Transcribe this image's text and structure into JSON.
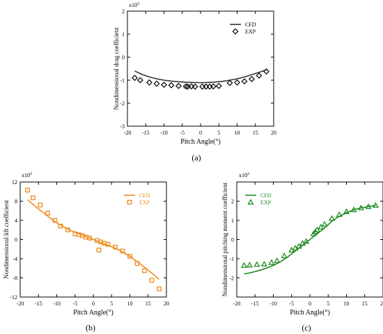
{
  "chart_data": [
    {
      "type": "line",
      "panel_label": "(a)",
      "xlabel": "Pitch Angle(°)",
      "ylabel": "Nondimensional drag  coefficient",
      "y_multiplier": "x10",
      "y_multiplier_exp": "-3",
      "xlim": [
        -20,
        20
      ],
      "ylim": [
        -3,
        2
      ],
      "xticks": [
        -20,
        -15,
        -10,
        -5,
        0,
        5,
        10,
        15,
        20
      ],
      "yticks": [
        -3,
        -2,
        -1,
        0,
        1,
        2
      ],
      "legend_position": "top-right",
      "series": [
        {
          "name": "CFD",
          "kind": "line",
          "color": "#333333",
          "x": [
            -18,
            -16,
            -14,
            -12,
            -10,
            -8,
            -6,
            -4,
            -2,
            0,
            2,
            4,
            6,
            8,
            10,
            12,
            14,
            16,
            18
          ],
          "y": [
            -0.6,
            -0.75,
            -0.86,
            -0.94,
            -1.0,
            -1.04,
            -1.07,
            -1.09,
            -1.1,
            -1.11,
            -1.1,
            -1.08,
            -1.05,
            -1.0,
            -0.94,
            -0.86,
            -0.76,
            -0.66,
            -0.55
          ]
        },
        {
          "name": "EXP",
          "kind": "diamond",
          "color": "#111111",
          "x": [
            -18,
            -16.5,
            -14,
            -12,
            -10,
            -8,
            -6,
            -4,
            -3.5,
            -2.5,
            -1.5,
            0.5,
            1.5,
            2.5,
            3.5,
            5,
            8,
            10,
            12,
            14,
            16,
            18
          ],
          "y": [
            -0.9,
            -1.0,
            -1.1,
            -1.15,
            -1.2,
            -1.22,
            -1.25,
            -1.27,
            -1.28,
            -1.27,
            -1.28,
            -1.28,
            -1.28,
            -1.28,
            -1.27,
            -1.25,
            -1.12,
            -1.1,
            -1.05,
            -0.95,
            -0.8,
            -0.62
          ]
        }
      ]
    },
    {
      "type": "line",
      "panel_label": "(b)",
      "xlabel": "Pitch Angle(°)",
      "ylabel": "Nondimensional lift  coefficient",
      "y_multiplier": "x10",
      "y_multiplier_exp": "-3",
      "xlim": [
        -20,
        20
      ],
      "ylim": [
        -12,
        12
      ],
      "xticks": [
        -20,
        -15,
        -10,
        -5,
        0,
        5,
        10,
        15,
        20
      ],
      "yticks": [
        -12,
        -8,
        -4,
        0,
        4,
        8,
        12
      ],
      "legend_position": "top-right",
      "series": [
        {
          "name": "CFD",
          "kind": "line",
          "color": "#ee8a1c",
          "x": [
            -18,
            -16,
            -14,
            -12,
            -10,
            -8,
            -6,
            -4,
            -2,
            0,
            2,
            4,
            6,
            8,
            10,
            12,
            14,
            16,
            18
          ],
          "y": [
            8.3,
            7.0,
            5.8,
            4.6,
            3.5,
            2.6,
            1.8,
            1.2,
            0.6,
            0.0,
            -0.6,
            -1.2,
            -1.8,
            -2.6,
            -3.5,
            -4.6,
            -5.8,
            -7.0,
            -8.3
          ]
        },
        {
          "name": "EXP",
          "kind": "square",
          "color": "#ee8a1c",
          "x": [
            -18,
            -16.5,
            -14.5,
            -12.5,
            -10.5,
            -9,
            -7,
            -5,
            -4,
            -3,
            -2,
            -1,
            1,
            1.5,
            2,
            3,
            4,
            6,
            8,
            10,
            12,
            14,
            16,
            18
          ],
          "y": [
            10.3,
            8.7,
            7.2,
            5.5,
            4.0,
            2.8,
            2.0,
            1.2,
            1.0,
            0.8,
            0.5,
            0.3,
            -0.2,
            -2.2,
            -0.5,
            -0.8,
            -1.0,
            -1.6,
            -2.4,
            -3.5,
            -5.0,
            -6.5,
            -8.5,
            -10.3
          ]
        }
      ]
    },
    {
      "type": "line",
      "panel_label": "(c)",
      "xlabel": "Pitch Angle(°)",
      "ylabel": "Nondimensional pitching moment coefficient",
      "y_multiplier": "x10",
      "y_multiplier_exp": "-3",
      "xlim": [
        -20,
        20
      ],
      "ylim": [
        -3,
        3
      ],
      "xticks": [
        -20,
        -15,
        -10,
        -5,
        0,
        5,
        10,
        15,
        20
      ],
      "yticks": [
        -2,
        -1,
        0,
        1,
        2
      ],
      "legend_position": "top-left",
      "series": [
        {
          "name": "CFD",
          "kind": "line",
          "color": "#1f8a1f",
          "x": [
            -18,
            -16,
            -14,
            -12,
            -10,
            -8,
            -6,
            -4,
            -2,
            0,
            2,
            4,
            6,
            8,
            10,
            12,
            14,
            16,
            18
          ],
          "y": [
            -1.8,
            -1.72,
            -1.62,
            -1.5,
            -1.35,
            -1.15,
            -0.9,
            -0.6,
            -0.3,
            0.0,
            0.3,
            0.6,
            0.95,
            1.2,
            1.4,
            1.55,
            1.65,
            1.72,
            1.78
          ]
        },
        {
          "name": "EXP",
          "kind": "triangle",
          "color": "#1f8a1f",
          "x": [
            -18,
            -16.5,
            -14.5,
            -12.5,
            -10.5,
            -9,
            -7,
            -5,
            -4,
            -3,
            -2,
            -1,
            1,
            1.5,
            2,
            3,
            4,
            6,
            8,
            10,
            12,
            14,
            16,
            18
          ],
          "y": [
            -1.35,
            -1.33,
            -1.3,
            -1.28,
            -1.2,
            -1.1,
            -0.85,
            -0.55,
            -0.45,
            -0.35,
            -0.2,
            -0.1,
            0.3,
            0.4,
            0.5,
            0.65,
            0.8,
            1.1,
            1.3,
            1.45,
            1.55,
            1.65,
            1.72,
            1.78
          ]
        }
      ]
    }
  ]
}
